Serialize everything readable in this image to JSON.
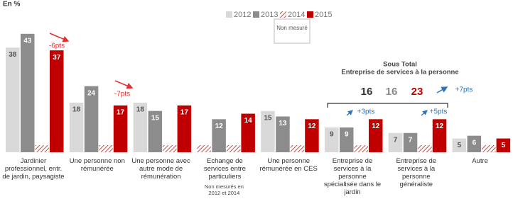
{
  "chart_data": {
    "type": "bar",
    "title": "En %",
    "categories": [
      "Jardinier professionnel, entr. de jardin, paysagiste",
      "Une personne non rémunérée",
      "Une personne avec autre mode de rémunération",
      "Echange de services entre particuliers",
      "Une personne rémunérée en CES",
      "Entreprise de services à la personne spécialisée dans le jardin",
      "Entreprise de services à la personne généraliste",
      "Autre"
    ],
    "series": [
      {
        "name": "2012",
        "color": "#d9d9d9",
        "values": [
          38,
          18,
          18,
          null,
          15,
          9,
          7,
          5
        ]
      },
      {
        "name": "2013",
        "color": "#8c8c8c",
        "values": [
          43,
          24,
          15,
          12,
          13,
          9,
          7,
          6
        ]
      },
      {
        "name": "2014",
        "color": "#c0504d",
        "values": [
          null,
          null,
          null,
          null,
          null,
          null,
          null,
          null
        ]
      },
      {
        "name": "2015",
        "color": "#c00000",
        "values": [
          37,
          17,
          17,
          14,
          12,
          12,
          12,
          5
        ]
      }
    ],
    "legend_note": "Non mesuré",
    "category_note": "Non mesurés en 2012 et 2014",
    "ylim": [
      0,
      45
    ],
    "annotations": [
      {
        "text": "-6pts",
        "color": "#e03030"
      },
      {
        "text": "-7pts",
        "color": "#e03030"
      },
      {
        "text": "+3pts",
        "color": "#2e75b6"
      },
      {
        "text": "+5pts",
        "color": "#2e75b6"
      },
      {
        "text": "+7pts",
        "color": "#2e75b6"
      }
    ],
    "subtotal": {
      "title": "Sous Total",
      "subtitle": "Entreprise de services à la personne",
      "values": [
        16,
        16,
        23
      ]
    }
  }
}
